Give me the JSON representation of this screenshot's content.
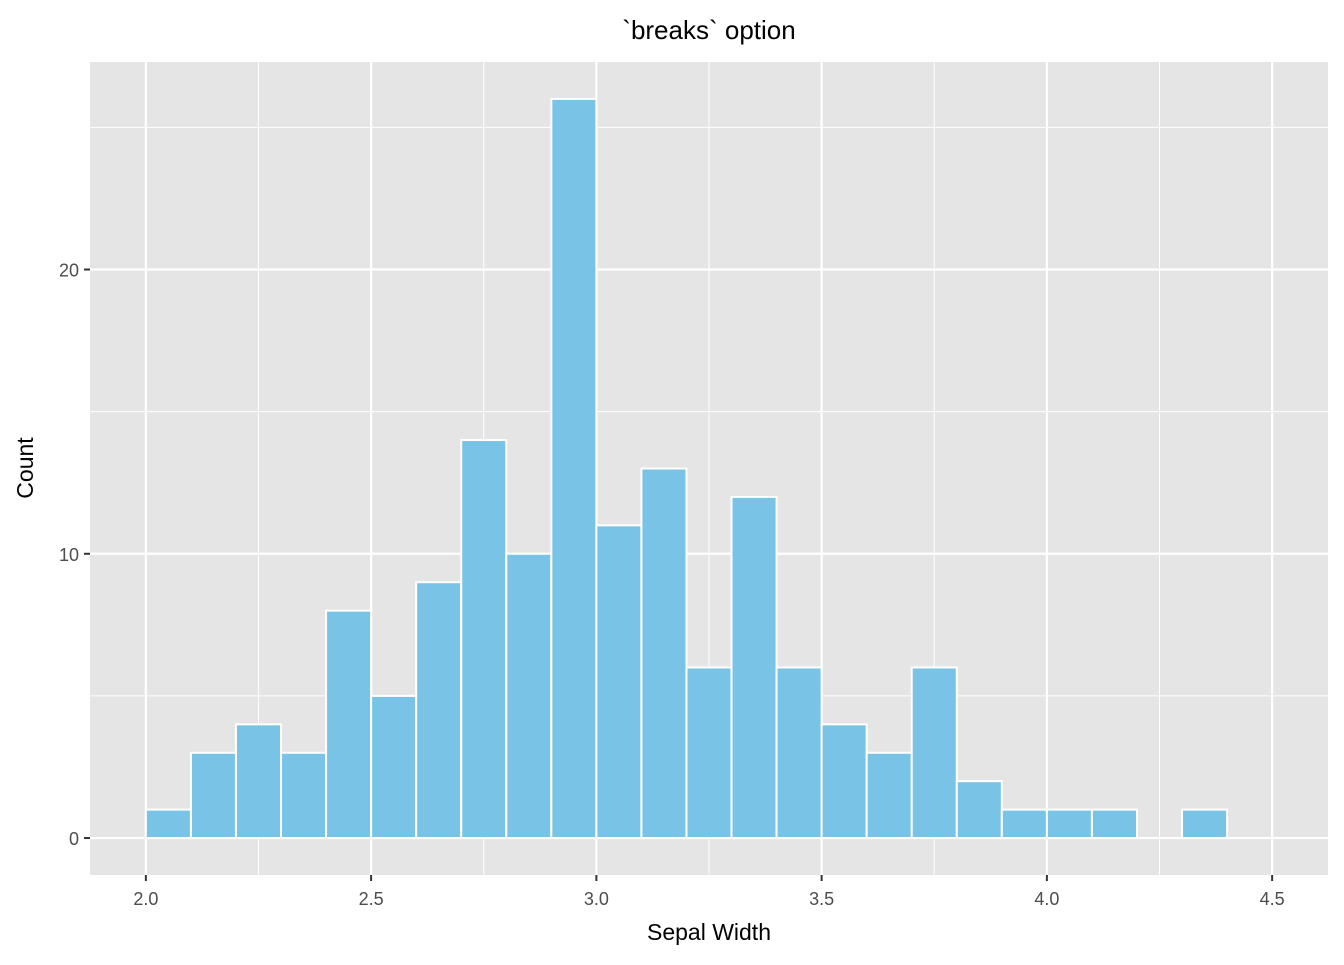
{
  "chart_data": {
    "type": "bar",
    "title": "`breaks` option",
    "xlabel": "Sepal Width",
    "ylabel": "Count",
    "bin_width": 0.1,
    "bin_starts": [
      2.0,
      2.1,
      2.2,
      2.3,
      2.4,
      2.5,
      2.6,
      2.7,
      2.8,
      2.9,
      3.0,
      3.1,
      3.2,
      3.3,
      3.4,
      3.5,
      3.6,
      3.7,
      3.8,
      3.9,
      4.0,
      4.1,
      4.2,
      4.3,
      4.4
    ],
    "values": [
      1,
      3,
      4,
      3,
      8,
      5,
      9,
      14,
      10,
      26,
      11,
      13,
      6,
      12,
      6,
      4,
      3,
      6,
      2,
      1,
      1,
      1,
      0,
      1,
      0
    ],
    "xlim": [
      1.876,
      4.624
    ],
    "ylim": [
      -1.3,
      27.3
    ],
    "x_ticks": [
      2.0,
      2.5,
      3.0,
      3.5,
      4.0,
      4.5
    ],
    "x_tick_labels": [
      "2.0",
      "2.5",
      "3.0",
      "3.5",
      "4.0",
      "4.5"
    ],
    "y_ticks": [
      0,
      10,
      20
    ],
    "y_tick_labels": [
      "0",
      "10",
      "20"
    ],
    "grid": true,
    "colors": {
      "bar_fill": "#78C3E6",
      "bar_edge": "#FFFFFF",
      "panel": "#E5E5E5",
      "grid": "#FFFFFF"
    }
  }
}
